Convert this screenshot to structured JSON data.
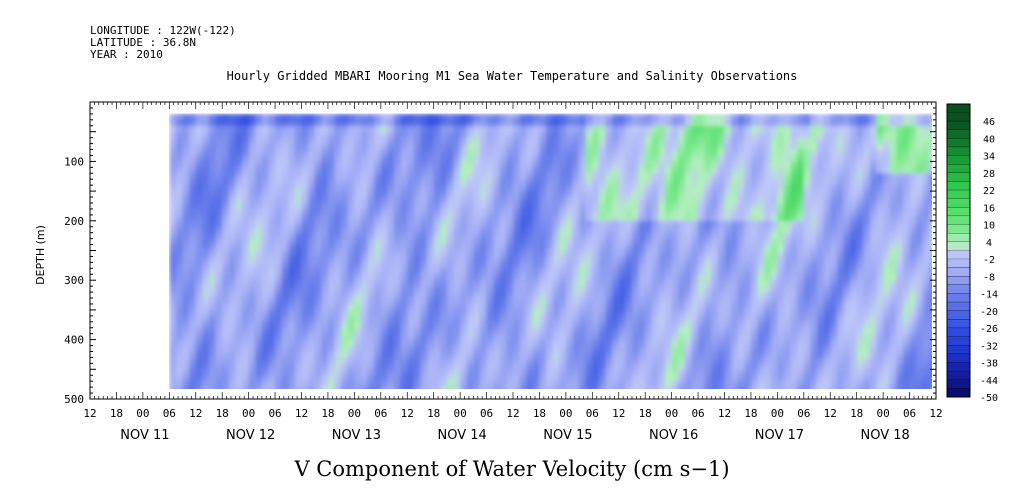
{
  "header": {
    "longitude": "LONGITUDE : 122W(-122)",
    "latitude": "LATITUDE : 36.8N",
    "year": "YEAR : 2010"
  },
  "chart_data": {
    "type": "heatmap",
    "title": "Hourly Gridded MBARI Mooring M1 Sea Water Temperature and Salinity Observations",
    "xlabel": "V Component of Water Velocity (cm s−1)",
    "ylabel": "DEPTH (m)",
    "y_ticks": [
      100,
      200,
      300,
      400,
      500
    ],
    "y_range": [
      0,
      500
    ],
    "y_data_range": [
      20,
      490
    ],
    "x_range_hours": [
      -12,
      180
    ],
    "x_data_range_hours": [
      6,
      180
    ],
    "hour_tick_labels": [
      "12",
      "18",
      "00",
      "06",
      "12",
      "18",
      "00",
      "06",
      "12",
      "18",
      "00",
      "06",
      "12",
      "18",
      "00",
      "06",
      "12",
      "18",
      "00",
      "06",
      "12",
      "18",
      "00",
      "06",
      "12",
      "18",
      "00",
      "06",
      "12",
      "18",
      "00",
      "06",
      "12"
    ],
    "day_labels": [
      "NOV 11",
      "NOV 12",
      "NOV 13",
      "NOV 14",
      "NOV 15",
      "NOV 16",
      "NOV 17",
      "NOV 18"
    ],
    "colorbar_labels": [
      "46",
      "40",
      "34",
      "28",
      "22",
      "16",
      "10",
      "4",
      "-2",
      "-8",
      "-14",
      "-20",
      "-26",
      "-32",
      "-38",
      "-44",
      "-50"
    ],
    "colorbar_range": [
      -50,
      52
    ],
    "colors": {
      "strong_negative": "#0a0a6a",
      "negative": "#2f4fd8",
      "weak_negative": "#a8b0f2",
      "weak_positive": "#a8f0b0",
      "positive": "#3ad65a",
      "strong_positive": "#0a4a1c"
    }
  }
}
